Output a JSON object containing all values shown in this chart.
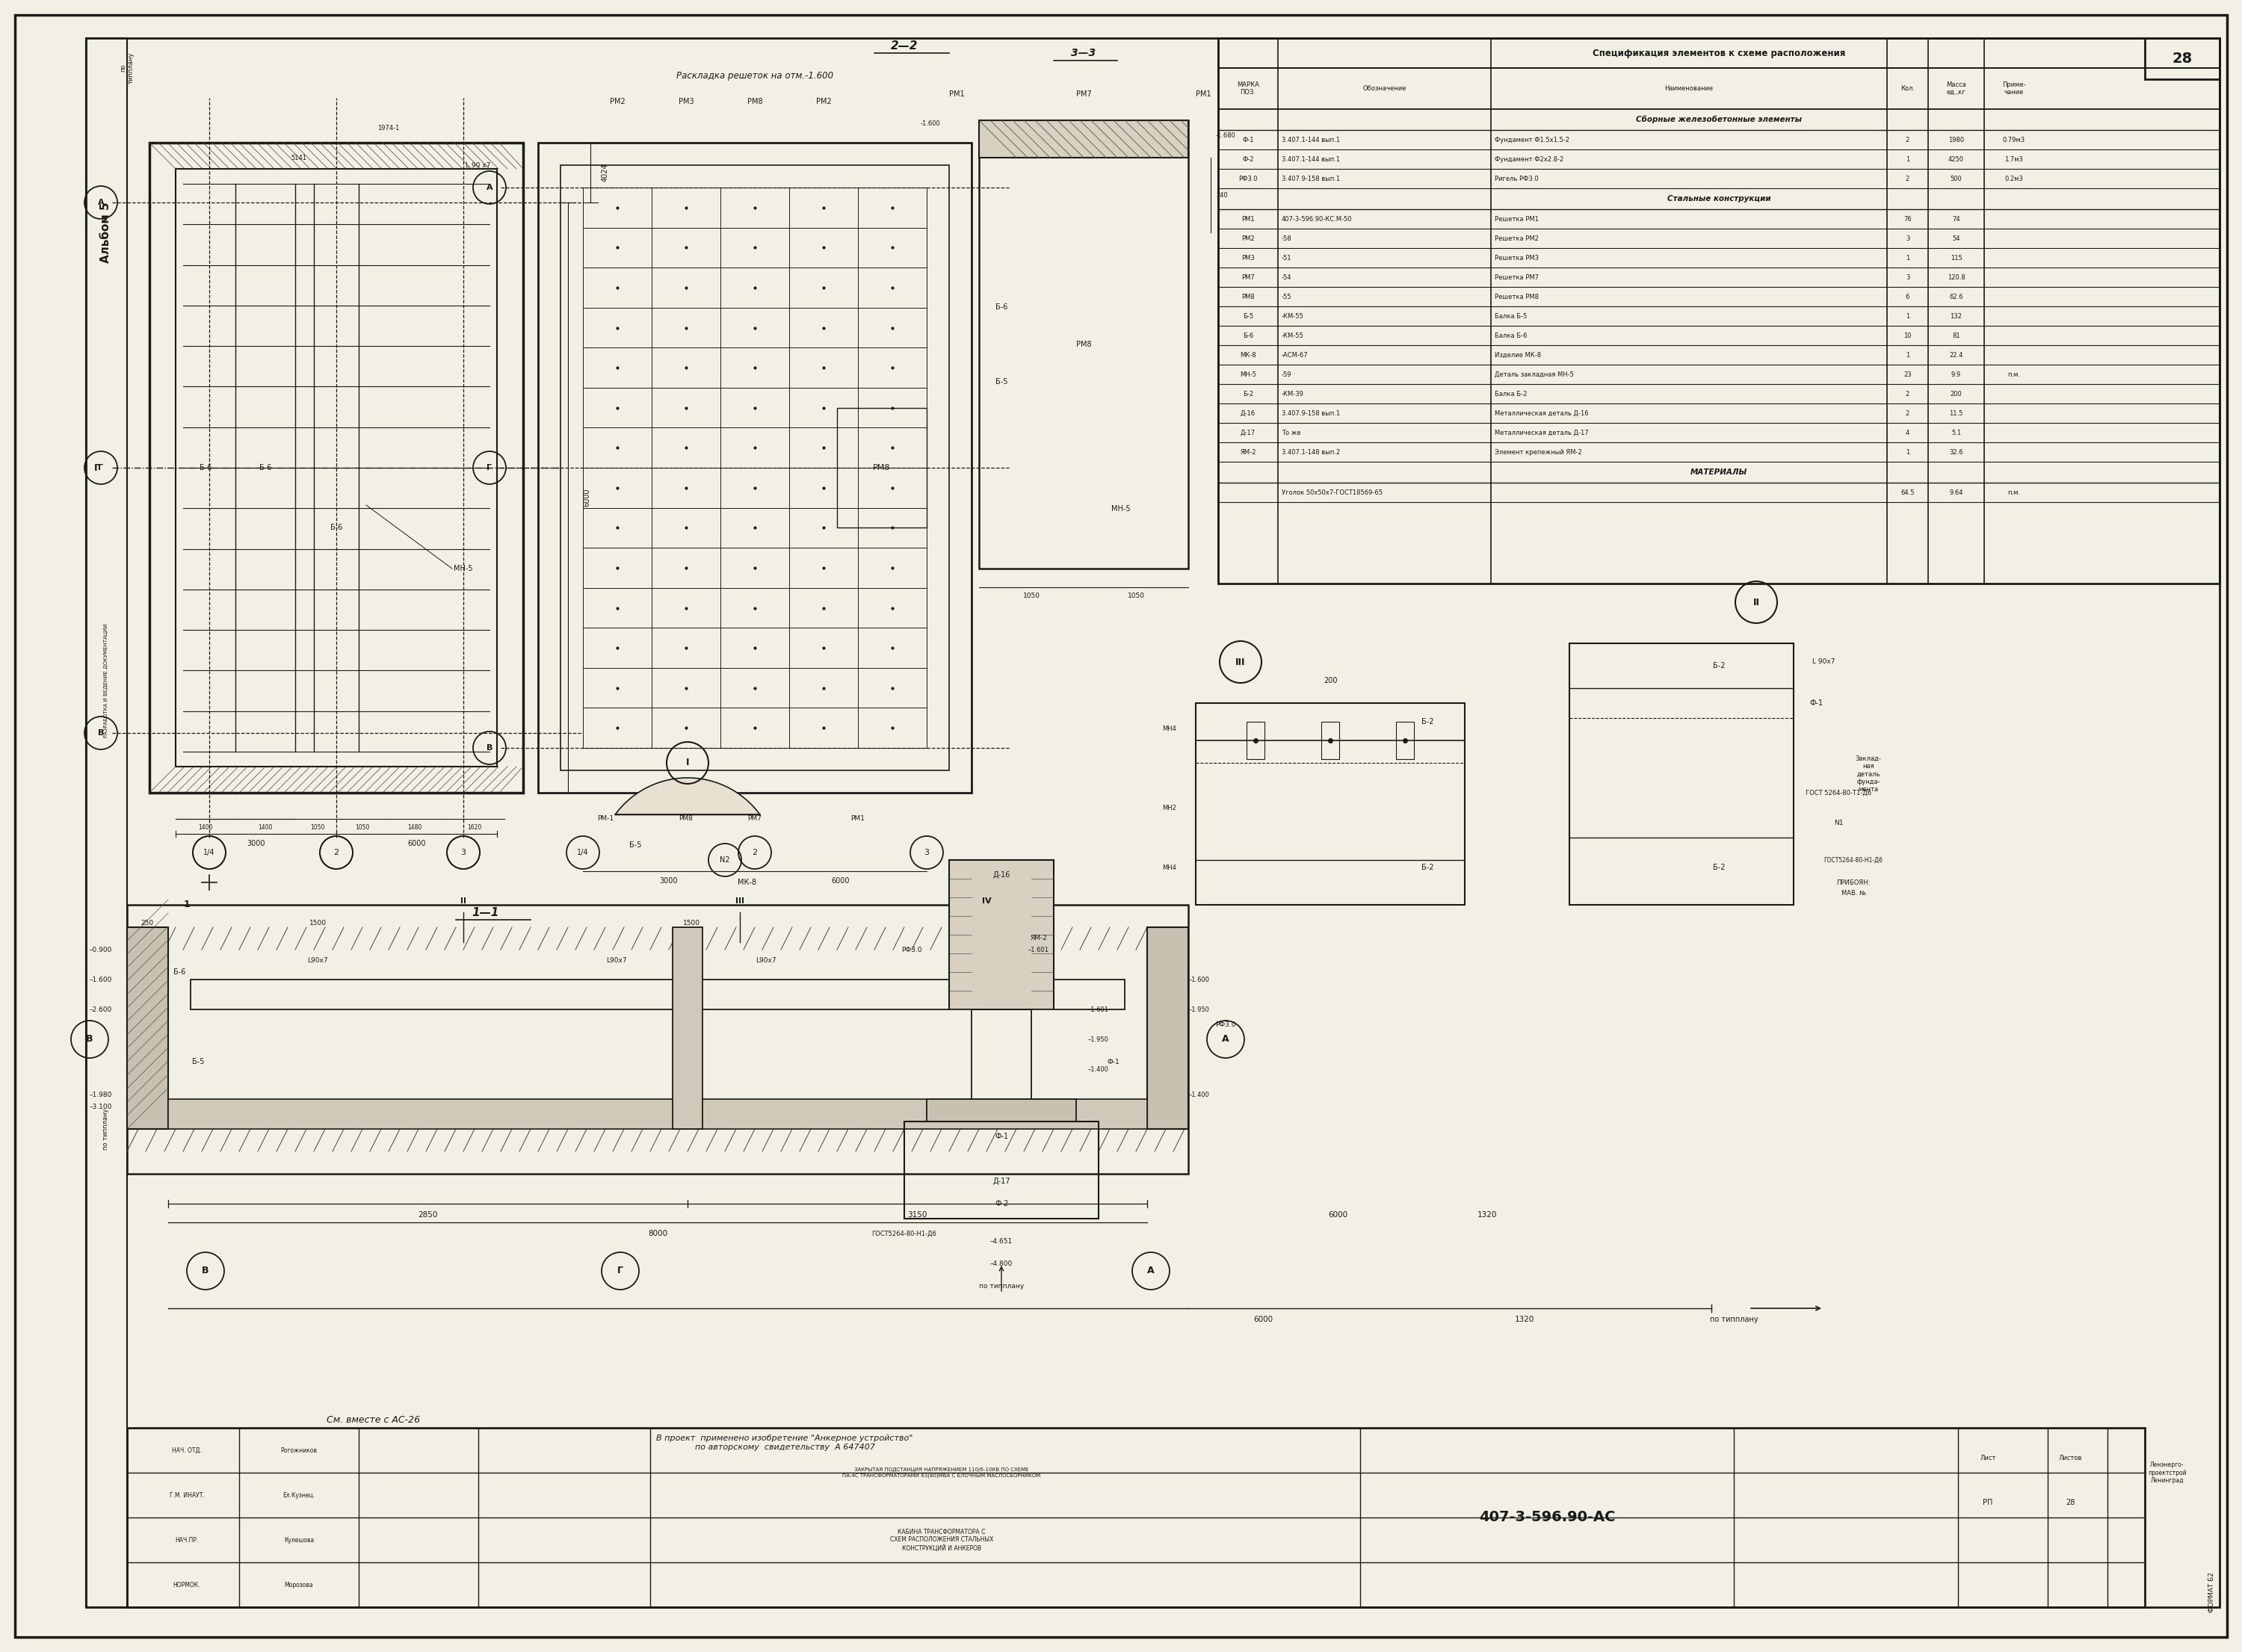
{
  "bg_color": "#f2efe4",
  "line_color": "#1a1a1a",
  "page_number": "28",
  "title_block": {
    "drawing_number": "407-3-596.90-АС",
    "sheet": "28",
    "format": "ФОРМАТ Б2"
  },
  "spec_title": "Спецификация элементов к схеме расположения",
  "spec_headers": [
    "МАРКА\nПОЗ.",
    "Обозначение",
    "Наименование",
    "Кол.",
    "Масса\nед.,кг",
    "Приме-\nчание"
  ],
  "spec_sections": [
    {
      "section_title": "Сборные железобетонные элементы",
      "rows": [
        [
          "Ф-1",
          "3.407.1-144 вып.1",
          "Фундамент Ф1.5х1.5-2",
          "2",
          "1980",
          "0.79м3"
        ],
        [
          "Ф-2",
          "3.407.1-144 вып.1",
          "Фундамент Ф2х2.8-2",
          "1",
          "4250",
          "1.7м3"
        ],
        [
          "РФ3.0",
          "3.407.9-158 вып.1",
          "Ригель РФ3.0",
          "2",
          "500",
          "0.2м3"
        ]
      ]
    },
    {
      "section_title": "Стальные конструкции",
      "rows": [
        [
          "РМ1",
          "407-3-596.90-КС.М-50",
          "Решетка РМ1",
          "76",
          "74",
          ""
        ],
        [
          "РМ2",
          "-58",
          "Решетка РМ2",
          "3",
          "54",
          ""
        ],
        [
          "РМ3",
          "-51",
          "Решетка РМ3",
          "1",
          "115",
          ""
        ],
        [
          "РМ7",
          "-54",
          "Решетка РМ7",
          "3",
          "120.8",
          ""
        ],
        [
          "РМ8",
          "-55",
          "Решетка РМ8",
          "6",
          "62.6",
          ""
        ],
        [
          "Б-5",
          "-КМ-55",
          "Балка Б-5",
          "1",
          "132",
          ""
        ],
        [
          "Б-6",
          "-КМ-55",
          "Балка Б-6",
          "10",
          "81",
          ""
        ],
        [
          "МК-8",
          "-АСМ-67",
          "Изделие МК-8",
          "1",
          "22.4",
          ""
        ],
        [
          "МН-5",
          "-59",
          "Деталь закладная МН-5",
          "23",
          "9.9",
          "п.м."
        ],
        [
          "Б-2",
          "-КМ-39",
          "Балка Б-2",
          "2",
          "200",
          ""
        ],
        [
          "Д-16",
          "3.407.9-158 вып.1",
          "Металлическая деталь Д-16",
          "2",
          "11.5",
          ""
        ],
        [
          "Д-17",
          "То же",
          "Металлическая деталь Д-17",
          "4",
          "5.1",
          ""
        ],
        [
          "ЯМ-2",
          "3.407.1-148 вып.2",
          "Элемент крепежный ЯМ-2",
          "1",
          "32.6",
          ""
        ]
      ]
    },
    {
      "section_title": "МАТЕРИАЛЫ",
      "rows": [
        [
          "",
          "Уголок 50х50х7-ГОСТ18569-65",
          "",
          "64.5",
          "9.64",
          "п.м."
        ]
      ]
    }
  ],
  "notes": {
    "see_together": "См. вместе с АС-26",
    "invention_note": "В проект  применено изобретение \"Анкерное устройство\"\nпо авторскому  свидетельству  А 647407"
  }
}
